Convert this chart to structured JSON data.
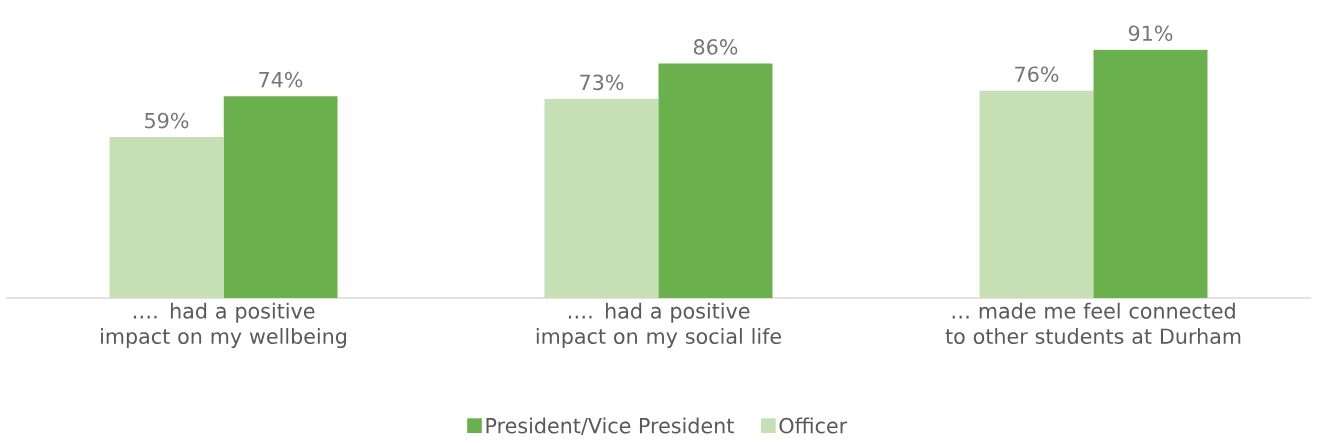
{
  "chart_data": {
    "type": "bar",
    "categories": [
      "…. had a positive impact on my wellbeing",
      "…. had a positive impact on my social life",
      "… made me feel connected to other students at Durham"
    ],
    "series": [
      {
        "name": "Officer",
        "color": "#c5e0b4",
        "values": [
          59,
          73,
          76
        ],
        "value_labels": [
          "59%",
          "73%",
          "76%"
        ]
      },
      {
        "name": "President/Vice President",
        "color": "#6ab04c",
        "values": [
          74,
          86,
          91
        ],
        "value_labels": [
          "74%",
          "86%",
          "91%"
        ]
      }
    ],
    "legend": "bottom"
  }
}
